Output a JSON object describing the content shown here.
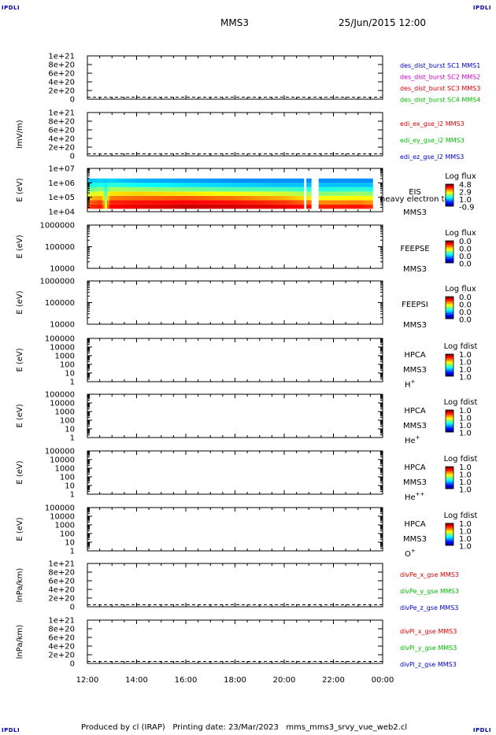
{
  "header": {
    "corner_label": "IPDLI",
    "spacecraft": "MMS3",
    "datetime": "25/Jun/2015 12:00"
  },
  "footer": {
    "text": "Produced by cl (IRAP)   Printing date: 23/Mar/2023   mms_mms3_srvy_vue_web2.cl"
  },
  "colors": {
    "mms1": "#0000cc",
    "mms2": "#cc00cc",
    "mms3": "#dd0000",
    "mms4": "#00bb00",
    "x": "#dd0000",
    "y": "#00bb00",
    "z": "#0000cc"
  },
  "chart_data": {
    "type": "stacked-timeseries",
    "x_ticks": [
      "12:00",
      "14:00",
      "16:00",
      "18:00",
      "20:00",
      "22:00",
      "00:00"
    ],
    "x_range_hours": [
      12,
      24
    ],
    "panels": [
      {
        "id": "p1",
        "ylabel": "",
        "yticks": [
          "1e+21",
          "8e+20",
          "6e+20",
          "4e+20",
          "2e+20",
          "0"
        ],
        "legend": [
          {
            "text": "des_dist_burst SC1 MMS1",
            "color": "#0000cc"
          },
          {
            "text": "des_dist_burst SC2 MMS2",
            "color": "#cc00cc"
          },
          {
            "text": "des_dist_burst SC3 MMS3",
            "color": "#dd0000"
          },
          {
            "text": "des_dist_burst SC4 MMS4",
            "color": "#00bb00"
          }
        ],
        "dashed_zero": true
      },
      {
        "id": "p2",
        "ylabel": "lmV/m)",
        "yticks": [
          "1e+21",
          "8e+20",
          "6e+20",
          "4e+20",
          "2e+20",
          "0"
        ],
        "legend": [
          {
            "text": "edi_ex_gse_l2 MMS3",
            "color": "#dd0000"
          },
          {
            "text": "edi_ey_gse_l2 MMS3",
            "color": "#00bb00"
          },
          {
            "text": "edi_ez_gse_l2 MMS3",
            "color": "#0000cc"
          }
        ],
        "dashed_zero": true
      },
      {
        "id": "p3",
        "ylabel": "E (eV)",
        "yticks": [
          "1e+07",
          "1e+06",
          "1e+05",
          "1e+04"
        ],
        "side_labels": [
          "EIS",
          "MMS3"
        ],
        "overlay_label": "heavy electron tc",
        "colorbar": {
          "title": "Log flux",
          "values": [
            "4.8",
            "2.9",
            "1.0",
            "-0.9"
          ]
        },
        "spectrogram": {
          "y_log_range": [
            4,
            7
          ],
          "energy_rows_log": [
            4.35,
            4.65,
            4.95,
            5.25,
            5.55,
            5.85,
            6.15
          ],
          "gaps_hours": [
            [
              20.85,
              20.92
            ],
            [
              21.15,
              21.42
            ],
            [
              23.6,
              24.0
            ]
          ],
          "row_profile": [
            {
              "t": 12.0,
              "vals": [
                3.8,
                3.5,
                3.0,
                2.4,
                1.8,
                1.3,
                0.9
              ]
            },
            {
              "t": 12.6,
              "vals": [
                4.0,
                3.8,
                3.2,
                2.6,
                2.0,
                1.4,
                1.0
              ]
            },
            {
              "t": 12.75,
              "vals": [
                2.6,
                2.2,
                2.0,
                1.7,
                1.5,
                1.2,
                0.9
              ]
            },
            {
              "t": 12.9,
              "vals": [
                4.1,
                3.9,
                3.4,
                2.8,
                2.2,
                1.5,
                1.0
              ]
            },
            {
              "t": 14.0,
              "vals": [
                4.2,
                4.0,
                3.5,
                2.9,
                2.1,
                1.3,
                0.8
              ]
            },
            {
              "t": 16.0,
              "vals": [
                4.4,
                4.1,
                3.6,
                2.8,
                1.9,
                1.1,
                0.7
              ]
            },
            {
              "t": 18.0,
              "vals": [
                4.3,
                4.0,
                3.4,
                2.6,
                1.7,
                1.0,
                0.6
              ]
            },
            {
              "t": 20.0,
              "vals": [
                4.2,
                3.8,
                3.1,
                2.4,
                1.6,
                0.9,
                0.6
              ]
            },
            {
              "t": 21.5,
              "vals": [
                3.9,
                3.3,
                2.6,
                2.0,
                1.4,
                0.9,
                0.6
              ]
            },
            {
              "t": 23.0,
              "vals": [
                4.0,
                3.4,
                2.7,
                2.1,
                1.5,
                0.9,
                0.6
              ]
            },
            {
              "t": 23.6,
              "vals": [
                3.8,
                3.2,
                2.6,
                2.0,
                1.4,
                0.9,
                0.6
              ]
            }
          ]
        }
      },
      {
        "id": "p4",
        "ylabel": "E (eV)",
        "yticks": [
          "1000000",
          "100000",
          "10000"
        ],
        "side_labels": [
          "FEEPSE",
          "MMS3"
        ],
        "colorbar": {
          "title": "Log flux",
          "values": [
            "0.0",
            "0.0",
            "0.0",
            "0.0"
          ]
        }
      },
      {
        "id": "p5",
        "ylabel": "E (eV)",
        "yticks": [
          "1000000",
          "100000",
          "10000"
        ],
        "side_labels": [
          "FEEPSI",
          "MMS3"
        ],
        "colorbar": {
          "title": "Log flux",
          "values": [
            "0.0",
            "0.0",
            "0.0",
            "0.0"
          ]
        }
      },
      {
        "id": "p6",
        "ylabel": "E (eV)",
        "yticks": [
          "100000",
          "10000",
          "1000",
          "100",
          "10",
          "1"
        ],
        "side_labels": [
          "HPCA",
          "MMS3"
        ],
        "species": {
          "base": "H",
          "sup": "+"
        },
        "colorbar": {
          "title": "Log fdist",
          "values": [
            "1.0",
            "1.0",
            "1.0",
            "1.0"
          ]
        }
      },
      {
        "id": "p7",
        "ylabel": "E (eV)",
        "yticks": [
          "100000",
          "10000",
          "1000",
          "100",
          "10",
          "1"
        ],
        "side_labels": [
          "HPCA",
          "MMS3"
        ],
        "species": {
          "base": "He",
          "sup": "+"
        },
        "colorbar": {
          "title": "Log fdist",
          "values": [
            "1.0",
            "1.0",
            "1.0",
            "1.0"
          ]
        }
      },
      {
        "id": "p8",
        "ylabel": "E (eV)",
        "yticks": [
          "100000",
          "10000",
          "1000",
          "100",
          "10",
          "1"
        ],
        "side_labels": [
          "HPCA",
          "MMS3"
        ],
        "species": {
          "base": "He",
          "sup": "++"
        },
        "colorbar": {
          "title": "Log fdist",
          "values": [
            "1.0",
            "1.0",
            "1.0",
            "1.0"
          ]
        }
      },
      {
        "id": "p9",
        "ylabel": "E (eV)",
        "yticks": [
          "100000",
          "10000",
          "1000",
          "100",
          "10",
          "1"
        ],
        "side_labels": [
          "HPCA",
          "MMS3"
        ],
        "species": {
          "base": "O",
          "sup": "+"
        },
        "colorbar": {
          "title": "Log fdist",
          "values": [
            "1.0",
            "1.0",
            "1.0",
            "1.0"
          ]
        }
      },
      {
        "id": "p10",
        "ylabel": "lnPa/km)",
        "yticks": [
          "1e+21",
          "8e+20",
          "6e+20",
          "4e+20",
          "2e+20",
          "0"
        ],
        "legend": [
          {
            "text": "divPe_x_gse MMS3",
            "color": "#dd0000"
          },
          {
            "text": "divPe_y_gse MMS3",
            "color": "#00bb00"
          },
          {
            "text": "divPe_z_gse MMS3",
            "color": "#0000cc"
          }
        ],
        "dashed_zero": true
      },
      {
        "id": "p11",
        "ylabel": "lnPa/km)",
        "yticks": [
          "1e+21",
          "8e+20",
          "6e+20",
          "4e+20",
          "2e+20",
          "0"
        ],
        "legend": [
          {
            "text": "divPi_x_gse MMS3",
            "color": "#dd0000"
          },
          {
            "text": "divPi_y_gse MMS3",
            "color": "#00bb00"
          },
          {
            "text": "divPi_z_gse MMS3",
            "color": "#0000cc"
          }
        ],
        "dashed_zero": true
      }
    ]
  }
}
